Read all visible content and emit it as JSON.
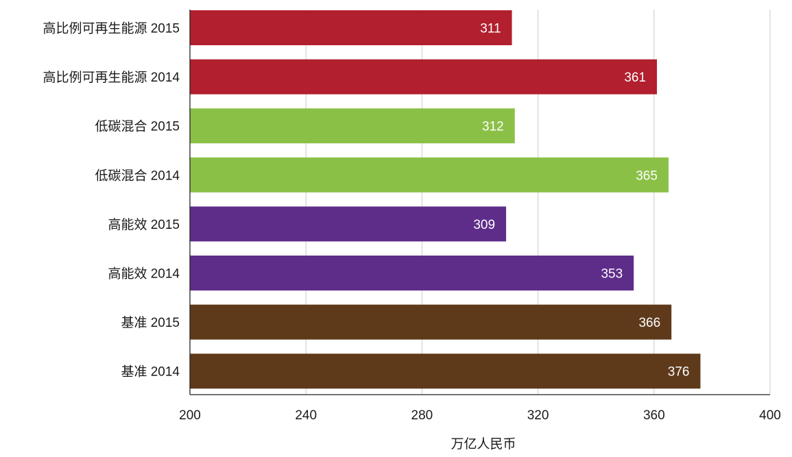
{
  "chart_data": {
    "type": "bar",
    "orientation": "horizontal",
    "categories": [
      "高比例可再生能源 2015",
      "高比例可再生能源 2014",
      "低碳混合 2015",
      "低碳混合 2014",
      "高能效 2015",
      "高能效 2014",
      "基准 2015",
      "基准 2014"
    ],
    "values": [
      311,
      361,
      312,
      365,
      309,
      353,
      366,
      376
    ],
    "colors": [
      "#b21f2e",
      "#b21f2e",
      "#8bc047",
      "#8bc047",
      "#5e2d8a",
      "#5e2d8a",
      "#5e3a1b",
      "#5e3a1b"
    ],
    "data_labels": [
      "311",
      "361",
      "312",
      "365",
      "309",
      "353",
      "366",
      "376"
    ],
    "xlim": [
      200,
      400
    ],
    "xticks": [
      200,
      240,
      280,
      320,
      360,
      400
    ],
    "tick_labels": [
      "200",
      "240",
      "280",
      "320",
      "360",
      "400"
    ],
    "xlabel": "万亿人民币",
    "ylabel": "",
    "title": "",
    "grid": "vertical",
    "legend": "none"
  }
}
